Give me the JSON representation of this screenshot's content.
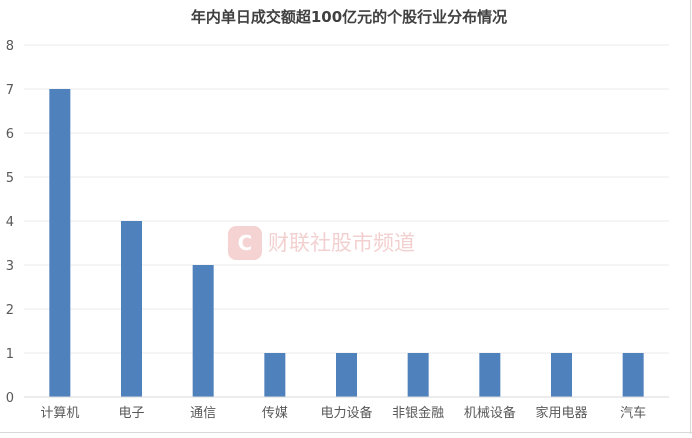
{
  "chart_data": {
    "type": "bar",
    "title": "年内单日成交额超100亿元的个股行业分布情况",
    "categories": [
      "计算机",
      "电子",
      "通信",
      "传媒",
      "电力设备",
      "非银金融",
      "机械设备",
      "家用电器",
      "汽车"
    ],
    "values": [
      7,
      4,
      3,
      1,
      1,
      1,
      1,
      1,
      1
    ],
    "ylim": [
      0,
      8
    ],
    "yticks": [
      "0",
      "1",
      "2",
      "3",
      "4",
      "5",
      "6",
      "7",
      "8"
    ],
    "xlabel": "",
    "ylabel": "",
    "grid": true,
    "legend": "none",
    "bar_color": "#4f81bd"
  },
  "watermark": {
    "logo_letter": "C",
    "text": "财联社股市频道",
    "color": "#f2c9c9"
  }
}
